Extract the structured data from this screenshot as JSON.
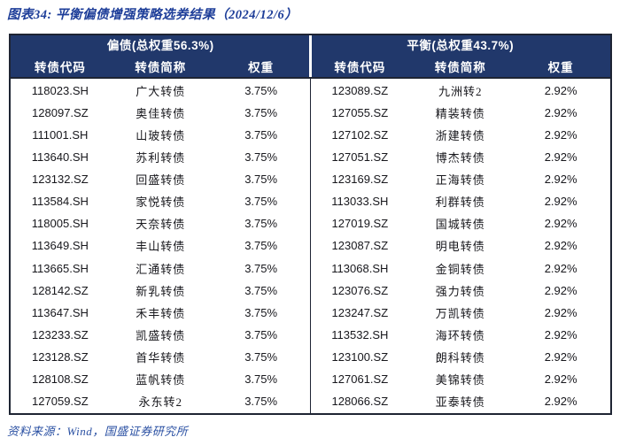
{
  "page": {
    "title": "图表34: 平衡偏债增强策略选券结果（2024/12/6）",
    "source": "资料来源：Wind，国盛证券研究所"
  },
  "columns": [
    "转债代码",
    "转债简称",
    "权重"
  ],
  "panels": [
    {
      "group_header": "偏债(总权重56.3%)",
      "rows": [
        [
          "118023.SH",
          "广大转债",
          "3.75%"
        ],
        [
          "128097.SZ",
          "奥佳转债",
          "3.75%"
        ],
        [
          "111001.SH",
          "山玻转债",
          "3.75%"
        ],
        [
          "113640.SH",
          "苏利转债",
          "3.75%"
        ],
        [
          "123132.SZ",
          "回盛转债",
          "3.75%"
        ],
        [
          "113584.SH",
          "家悦转债",
          "3.75%"
        ],
        [
          "118005.SH",
          "天奈转债",
          "3.75%"
        ],
        [
          "113649.SH",
          "丰山转债",
          "3.75%"
        ],
        [
          "113665.SH",
          "汇通转债",
          "3.75%"
        ],
        [
          "128142.SZ",
          "新乳转债",
          "3.75%"
        ],
        [
          "113647.SH",
          "禾丰转债",
          "3.75%"
        ],
        [
          "123233.SZ",
          "凯盛转债",
          "3.75%"
        ],
        [
          "123128.SZ",
          "首华转债",
          "3.75%"
        ],
        [
          "128108.SZ",
          "蓝帆转债",
          "3.75%"
        ],
        [
          "127059.SZ",
          "永东转2",
          "3.75%"
        ]
      ]
    },
    {
      "group_header": "平衡(总权重43.7%)",
      "rows": [
        [
          "123089.SZ",
          "九洲转2",
          "2.92%"
        ],
        [
          "127055.SZ",
          "精装转债",
          "2.92%"
        ],
        [
          "127102.SZ",
          "浙建转债",
          "2.92%"
        ],
        [
          "127051.SZ",
          "博杰转债",
          "2.92%"
        ],
        [
          "123169.SZ",
          "正海转债",
          "2.92%"
        ],
        [
          "113033.SH",
          "利群转债",
          "2.92%"
        ],
        [
          "127019.SZ",
          "国城转债",
          "2.92%"
        ],
        [
          "123087.SZ",
          "明电转债",
          "2.92%"
        ],
        [
          "113068.SH",
          "金铜转债",
          "2.92%"
        ],
        [
          "123076.SZ",
          "强力转债",
          "2.92%"
        ],
        [
          "123247.SZ",
          "万凯转债",
          "2.92%"
        ],
        [
          "113532.SH",
          "海环转债",
          "2.92%"
        ],
        [
          "123100.SZ",
          "朗科转债",
          "2.92%"
        ],
        [
          "127061.SZ",
          "美锦转债",
          "2.92%"
        ],
        [
          "128066.SZ",
          "亚泰转债",
          "2.92%"
        ]
      ]
    }
  ],
  "colors": {
    "header_bg": "#21386B",
    "table_border": "#1E2433",
    "title_text": "#1E3E99",
    "source_text": "#2B51A3",
    "body_text": "#17171C",
    "header_text": "#FFFFFF"
  }
}
